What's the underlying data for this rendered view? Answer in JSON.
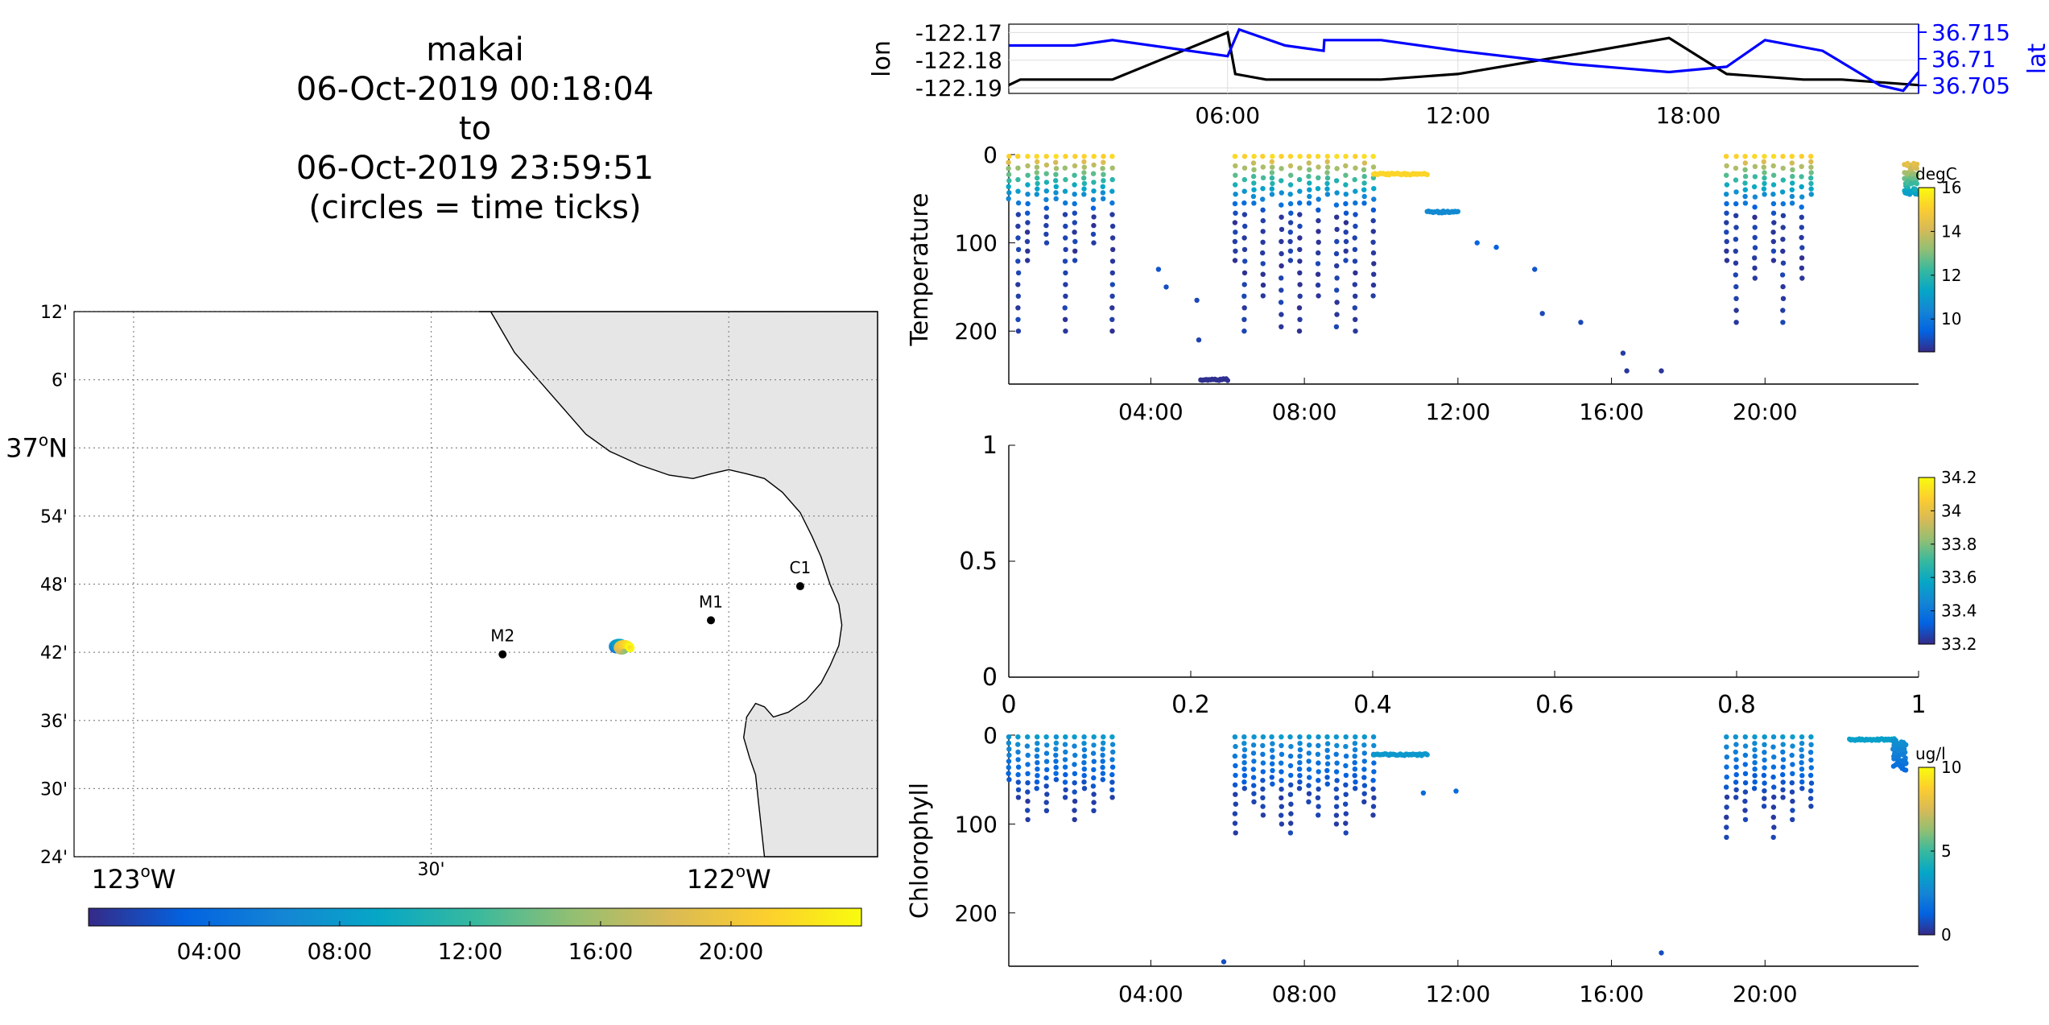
{
  "colors": {
    "lon_line": "#000000",
    "lat_line": "#0000ff",
    "land": "#e6e6e6",
    "station": "#000000",
    "parula": [
      "#352a87",
      "#0363e1",
      "#1485d4",
      "#06a7c6",
      "#38b99e",
      "#92bf73",
      "#d9ba56",
      "#fcce2e",
      "#f9fb0e"
    ]
  },
  "chart_data": [
    {
      "id": "title",
      "type": "text",
      "lines": [
        "makai",
        "06-Oct-2019 00:18:04",
        "to",
        "06-Oct-2019 23:59:51",
        "(circles = time ticks)"
      ]
    },
    {
      "id": "map",
      "type": "scatter",
      "xlim": [
        -123.1,
        -121.75
      ],
      "ylim": [
        36.4,
        37.2
      ],
      "x_ticks": [
        {
          "value": -123.0,
          "main": "123",
          "sup": "o",
          "suffix": "W"
        },
        {
          "value": -122.5,
          "main": "30'",
          "sup": "",
          "suffix": ""
        },
        {
          "value": -122.0,
          "main": "122",
          "sup": "o",
          "suffix": "W"
        }
      ],
      "y_ticks": [
        {
          "value": 37.2,
          "main": "12'",
          "sup": "",
          "suffix": ""
        },
        {
          "value": 37.1,
          "main": "6'",
          "sup": "",
          "suffix": ""
        },
        {
          "value": 37.0,
          "main": "37",
          "sup": "o",
          "suffix": "N"
        },
        {
          "value": 36.9,
          "main": "54'",
          "sup": "",
          "suffix": ""
        },
        {
          "value": 36.8,
          "main": "48'",
          "sup": "",
          "suffix": ""
        },
        {
          "value": 36.7,
          "main": "42'",
          "sup": "",
          "suffix": ""
        },
        {
          "value": 36.6,
          "main": "36'",
          "sup": "",
          "suffix": ""
        },
        {
          "value": 36.5,
          "main": "30'",
          "sup": "",
          "suffix": ""
        },
        {
          "value": 36.4,
          "main": "24'",
          "sup": "",
          "suffix": ""
        }
      ],
      "grid": true,
      "stations": [
        {
          "name": "M2",
          "lon": -122.38,
          "lat": 36.697
        },
        {
          "name": "M1",
          "lon": -122.03,
          "lat": 36.747
        },
        {
          "name": "C1",
          "lon": -121.88,
          "lat": 36.797
        }
      ],
      "track": {
        "lon": -122.19,
        "lat": 36.71
      },
      "time_colorbar": {
        "ticks": [
          "04:00",
          "08:00",
          "12:00",
          "16:00",
          "20:00"
        ],
        "tick_hours": [
          4,
          8,
          12,
          16,
          20
        ],
        "range_hours": [
          0.3,
          24
        ]
      }
    },
    {
      "id": "position",
      "type": "line",
      "xlabel": "",
      "ylabel_left": "lon",
      "ylabel_right": "lat",
      "xlim_hours": [
        0.3,
        24
      ],
      "x_ticks": [
        "06:00",
        "12:00",
        "18:00"
      ],
      "x_tick_hours": [
        6,
        12,
        18
      ],
      "ylim_left": [
        -122.192,
        -122.167
      ],
      "ylim_right": [
        36.7035,
        36.7165
      ],
      "y_ticks_left": [
        "-122.17",
        "-122.18",
        "-122.19"
      ],
      "y_tick_values_left": [
        -122.17,
        -122.18,
        -122.19
      ],
      "y_ticks_right": [
        "36.715",
        "36.71",
        "36.705"
      ],
      "y_tick_values_right": [
        36.715,
        36.71,
        36.705
      ],
      "grid": true,
      "series": [
        {
          "name": "lon",
          "x": [
            0.3,
            0.6,
            1.5,
            3.0,
            6.0,
            6.2,
            7.0,
            8.5,
            10.0,
            12.0,
            15.0,
            17.5,
            19.0,
            21.0,
            22.0,
            24.0
          ],
          "y": [
            -122.189,
            -122.187,
            -122.187,
            -122.187,
            -122.17,
            -122.185,
            -122.187,
            -122.187,
            -122.187,
            -122.185,
            -122.178,
            -122.172,
            -122.185,
            -122.187,
            -122.187,
            -122.189
          ]
        },
        {
          "name": "lat",
          "x": [
            0.3,
            2.0,
            3.0,
            6.0,
            6.3,
            7.5,
            8.5,
            8.52,
            10.0,
            12.0,
            15.0,
            17.5,
            19.0,
            20.0,
            21.5,
            23.0,
            23.6,
            24.0
          ],
          "y": [
            36.7125,
            36.7125,
            36.7135,
            36.7105,
            36.7155,
            36.7125,
            36.7115,
            36.7135,
            36.7135,
            36.7115,
            36.709,
            36.7075,
            36.7085,
            36.7135,
            36.7115,
            36.705,
            36.704,
            36.7075
          ]
        }
      ]
    },
    {
      "id": "temperature",
      "type": "scatter",
      "ylabel": "Temperature",
      "colorbar_label": "degC",
      "xlim_hours": [
        0.3,
        24
      ],
      "x_ticks": [
        "04:00",
        "08:00",
        "12:00",
        "16:00",
        "20:00"
      ],
      "x_tick_hours": [
        4,
        8,
        12,
        16,
        20
      ],
      "ylim": [
        260,
        0
      ],
      "y_ticks": [
        "0",
        "100",
        "200"
      ],
      "y_tick_values": [
        0,
        100,
        200
      ],
      "clim": [
        8.5,
        16
      ],
      "colorbar_ticks": [
        "16",
        "14",
        "12",
        "10"
      ],
      "colorbar_tick_values": [
        16,
        14,
        12,
        10
      ],
      "profile_groups": [
        {
          "t0": 0.3,
          "t1": 3.0,
          "n": 12,
          "zmax": [
            50,
            200,
            120,
            45,
            100
          ]
        },
        {
          "t0": 6.2,
          "t1": 9.8,
          "n": 16,
          "zmax": [
            120,
            200,
            55,
            160,
            45,
            195
          ]
        },
        {
          "t0": 19.0,
          "t1": 21.2,
          "n": 10,
          "zmax": [
            120,
            190,
            55,
            140,
            45
          ]
        }
      ],
      "tow_segments": [
        {
          "t0": 9.8,
          "t1": 11.2,
          "z": 22,
          "temp": 15.2
        },
        {
          "t0": 11.2,
          "t1": 12.0,
          "z": 65,
          "temp": 10.5
        },
        {
          "t0": 5.3,
          "t1": 6.0,
          "z": 255,
          "temp": 8.6
        }
      ],
      "sparse_points": [
        {
          "t": 4.2,
          "z": 130,
          "temp": 9.2
        },
        {
          "t": 4.4,
          "z": 150,
          "temp": 9.1
        },
        {
          "t": 12.5,
          "z": 100,
          "temp": 9.5
        },
        {
          "t": 13.0,
          "z": 105,
          "temp": 9.4
        },
        {
          "t": 14.0,
          "z": 130,
          "temp": 9.2
        },
        {
          "t": 14.2,
          "z": 180,
          "temp": 9.0
        },
        {
          "t": 15.2,
          "z": 190,
          "temp": 9.0
        },
        {
          "t": 16.3,
          "z": 225,
          "temp": 8.8
        },
        {
          "t": 16.4,
          "z": 245,
          "temp": 8.7
        },
        {
          "t": 17.3,
          "z": 245,
          "temp": 8.7
        },
        {
          "t": 5.2,
          "z": 165,
          "temp": 9.0
        },
        {
          "t": 5.25,
          "z": 210,
          "temp": 8.9
        }
      ],
      "cluster": {
        "t": 23.8,
        "z_range": [
          10,
          45
        ],
        "temp_range": [
          11,
          14.5
        ]
      }
    },
    {
      "id": "salinity",
      "type": "scatter",
      "ylabel": "",
      "xlim": [
        0,
        1
      ],
      "x_ticks": [
        "0",
        "0.2",
        "0.4",
        "0.6",
        "0.8",
        "1"
      ],
      "x_tick_values": [
        0,
        0.2,
        0.4,
        0.6,
        0.8,
        1
      ],
      "ylim": [
        0,
        1
      ],
      "y_ticks": [
        "1",
        "0.5",
        "0"
      ],
      "y_tick_values": [
        1,
        0.5,
        0
      ],
      "clim": [
        33.2,
        34.2
      ],
      "colorbar_ticks": [
        "34.2",
        "34",
        "33.8",
        "33.6",
        "33.4",
        "33.2"
      ],
      "colorbar_tick_values": [
        34.2,
        34.0,
        33.8,
        33.6,
        33.4,
        33.2
      ]
    },
    {
      "id": "chlorophyll",
      "type": "scatter",
      "ylabel": "Chlorophyll",
      "colorbar_label": "ug/l",
      "xlim_hours": [
        0.3,
        24
      ],
      "x_ticks": [
        "04:00",
        "08:00",
        "12:00",
        "16:00",
        "20:00"
      ],
      "x_tick_hours": [
        4,
        8,
        12,
        16,
        20
      ],
      "ylim": [
        260,
        0
      ],
      "y_ticks": [
        "0",
        "100",
        "200"
      ],
      "y_tick_values": [
        0,
        100,
        200
      ],
      "clim": [
        0,
        10
      ],
      "colorbar_ticks": [
        "10",
        "5",
        "0"
      ],
      "colorbar_tick_values": [
        10,
        5,
        0
      ],
      "profile_groups": [
        {
          "t0": 0.3,
          "t1": 3.0,
          "n": 12,
          "zmax": [
            50,
            70,
            95,
            60,
            85
          ]
        },
        {
          "t0": 6.2,
          "t1": 9.8,
          "n": 16,
          "zmax": [
            110,
            60,
            75,
            90,
            55,
            100
          ]
        },
        {
          "t0": 19.0,
          "t1": 21.2,
          "n": 10,
          "zmax": [
            115,
            70,
            95,
            60,
            80
          ]
        }
      ],
      "tow_segments": [
        {
          "t0": 9.8,
          "t1": 11.2,
          "z": 22,
          "chl": 3.2
        },
        {
          "t0": 22.2,
          "t1": 23.4,
          "z": 5,
          "chl": 3.5
        }
      ],
      "sparse_points": [
        {
          "t": 11.1,
          "z": 65,
          "chl": 1.5
        },
        {
          "t": 11.95,
          "z": 63,
          "chl": 1.5
        },
        {
          "t": 5.9,
          "z": 255,
          "chl": 0.8
        },
        {
          "t": 17.3,
          "z": 245,
          "chl": 0.8
        }
      ],
      "cluster": {
        "t": 23.5,
        "z_range": [
          5,
          40
        ],
        "chl_range": [
          1.5,
          3.0
        ]
      }
    }
  ]
}
